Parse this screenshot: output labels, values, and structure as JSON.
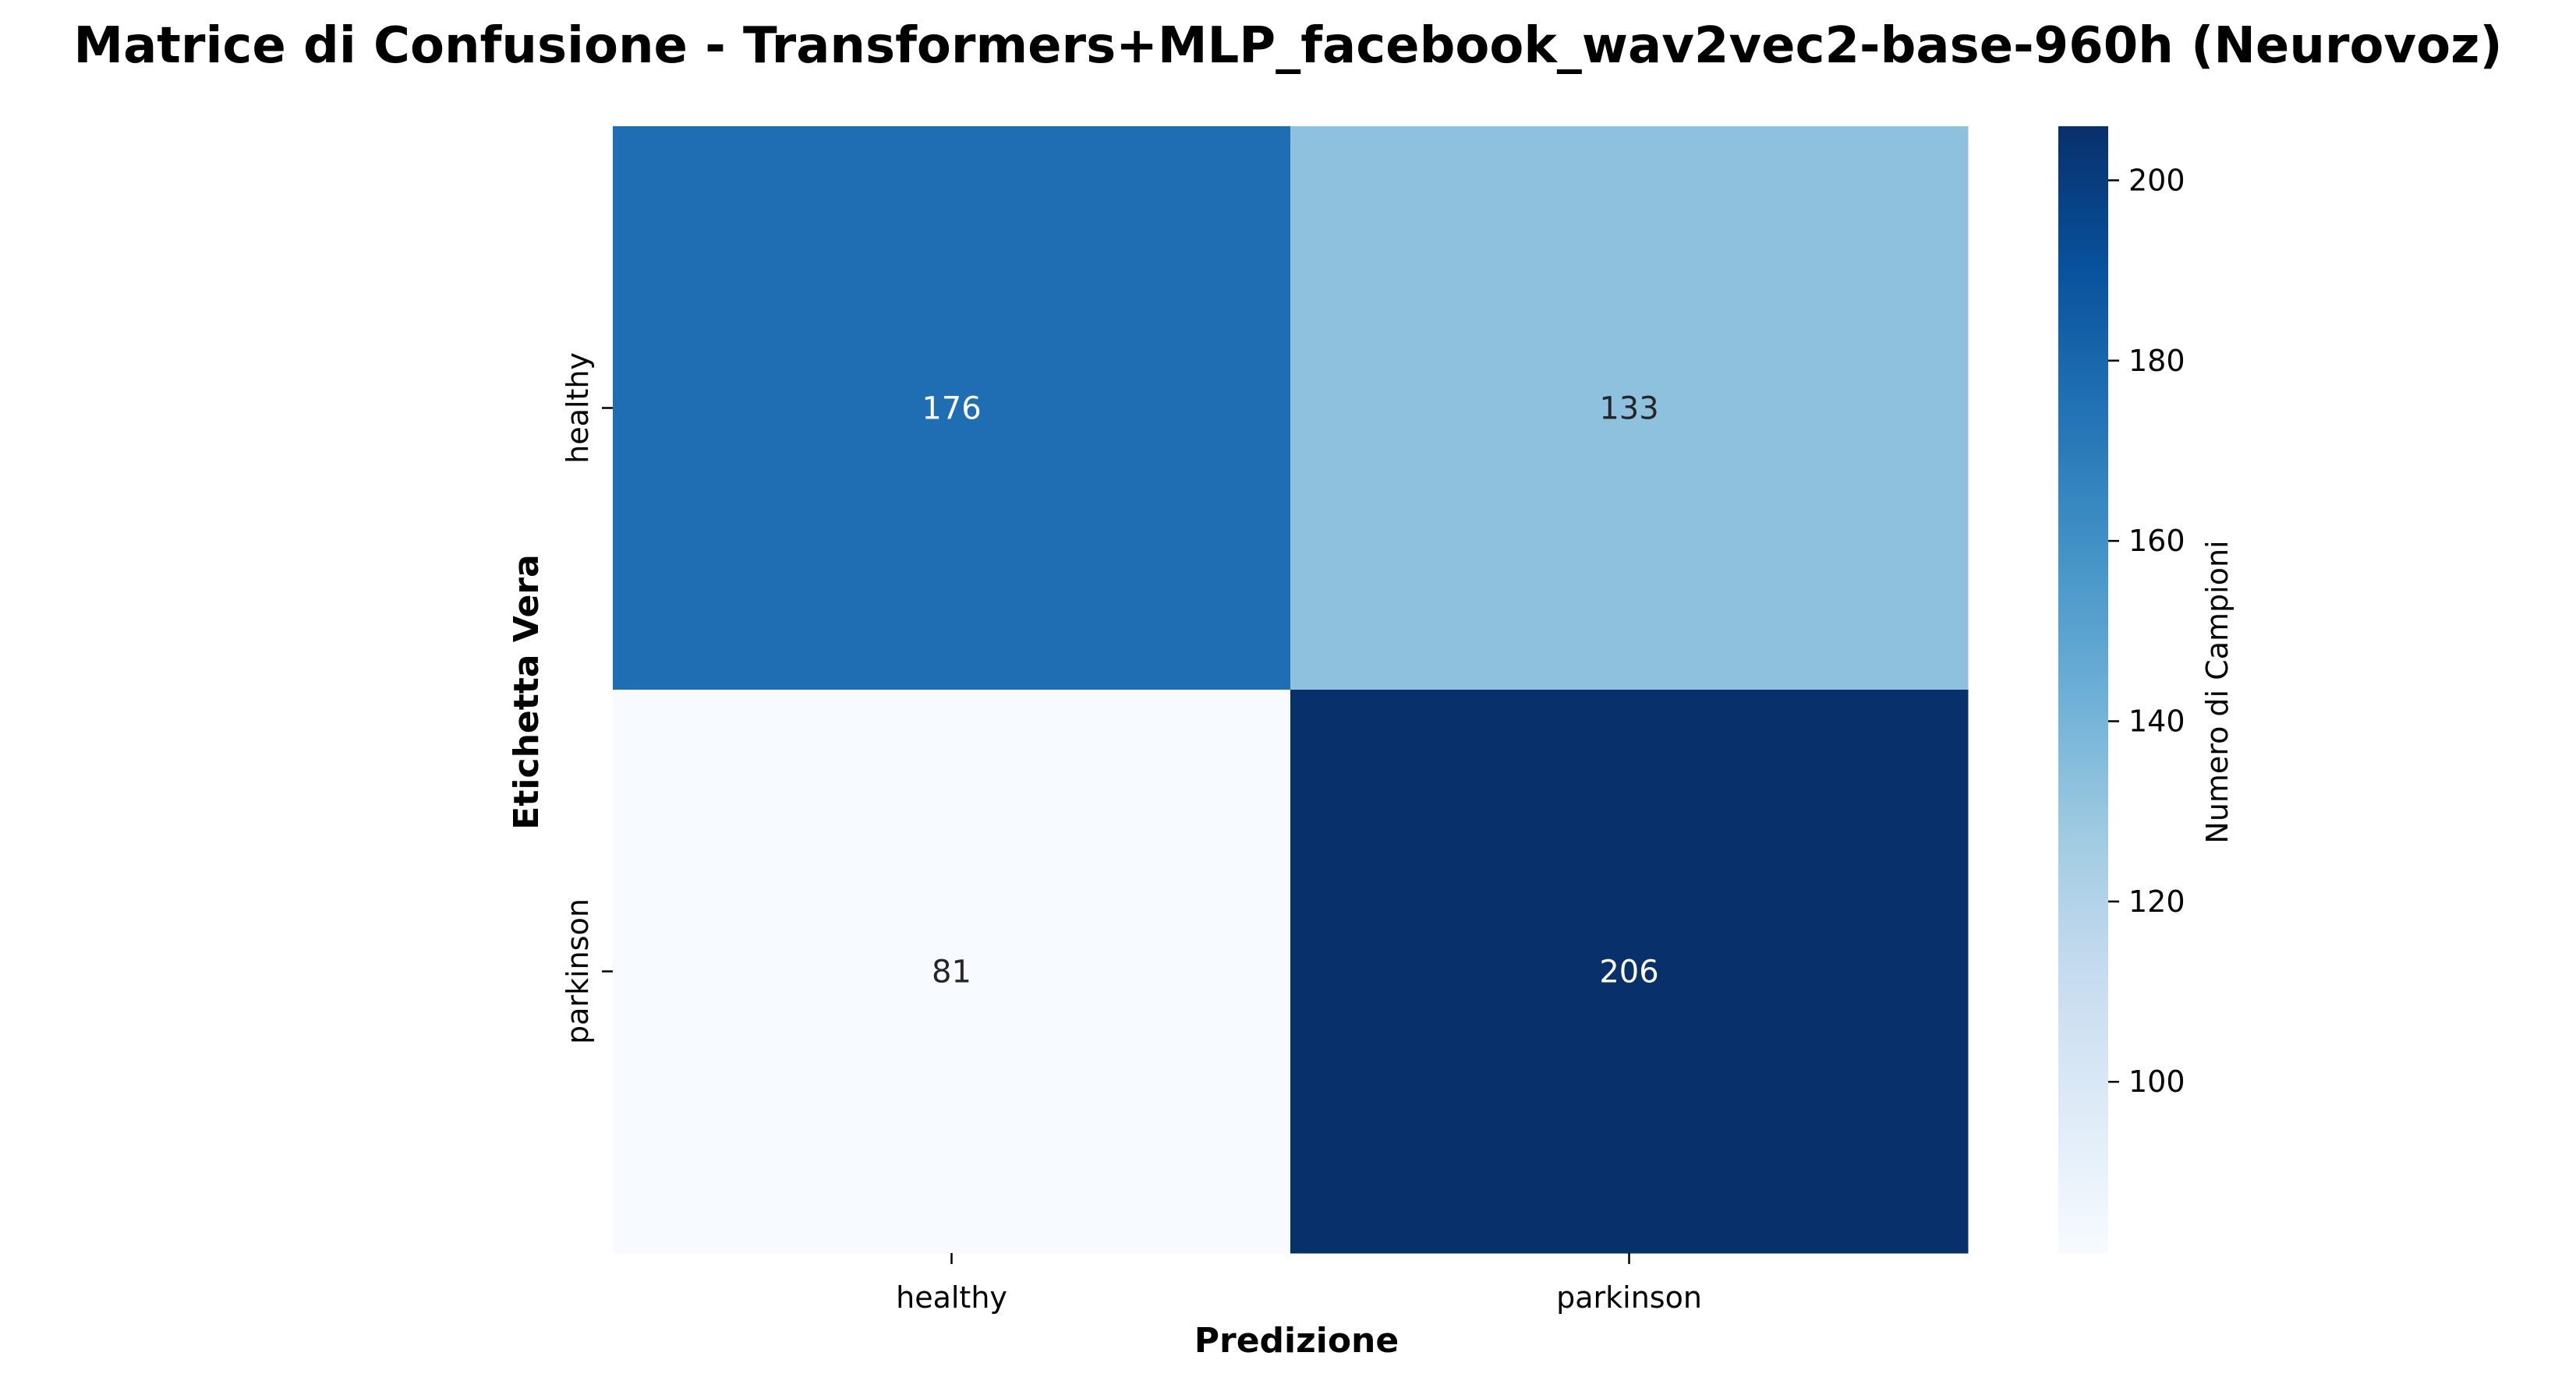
{
  "chart_data": {
    "type": "heatmap",
    "title": "Matrice di Confusione - Transformers+MLP_facebook_wav2vec2-base-960h (Neurovoz)",
    "xlabel": "Predizione",
    "ylabel": "Etichetta Vera",
    "x_categories": [
      "healthy",
      "parkinson"
    ],
    "y_categories": [
      "healthy",
      "parkinson"
    ],
    "values": [
      [
        176,
        133
      ],
      [
        81,
        206
      ]
    ],
    "colormap": "Blues",
    "vmin": 81,
    "vmax": 206,
    "colorbar": {
      "label": "Numero di Campioni",
      "ticks": [
        100,
        120,
        140,
        160,
        180,
        200
      ],
      "tick_labels": [
        "100",
        "120",
        "140",
        "160",
        "180",
        "200"
      ]
    }
  }
}
